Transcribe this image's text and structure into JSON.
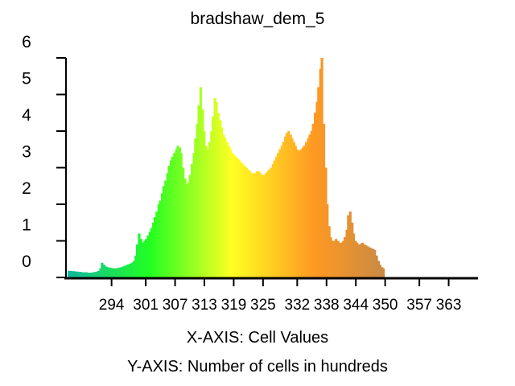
{
  "chart_data": {
    "type": "bar",
    "title": "bradshaw_dem_5",
    "xlabel": "X-AXIS: Cell Values",
    "ylabel": "Y-AXIS: Number of cells in hundreds",
    "x_range": [
      285,
      369
    ],
    "ylim": [
      0,
      6
    ],
    "xticks": [
      294,
      301,
      307,
      313,
      319,
      325,
      332,
      338,
      344,
      350,
      357,
      363
    ],
    "yticks": [
      0,
      1,
      2,
      3,
      4,
      5,
      6
    ],
    "grid": false,
    "legend": "none",
    "color_ramp": [
      "#11b7a0",
      "#22ff22",
      "#ffff22",
      "#ff9922",
      "#c0874a",
      "#c8c4bd"
    ],
    "bars": [
      [
        285.0,
        0.18
      ],
      [
        285.4,
        0.18
      ],
      [
        285.7,
        0.17
      ],
      [
        286.1,
        0.17
      ],
      [
        286.4,
        0.16
      ],
      [
        286.8,
        0.16
      ],
      [
        287.2,
        0.15
      ],
      [
        287.5,
        0.15
      ],
      [
        287.9,
        0.14
      ],
      [
        288.2,
        0.14
      ],
      [
        288.6,
        0.14
      ],
      [
        289.0,
        0.13
      ],
      [
        289.3,
        0.13
      ],
      [
        289.7,
        0.13
      ],
      [
        290.0,
        0.14
      ],
      [
        290.4,
        0.15
      ],
      [
        290.8,
        0.16
      ],
      [
        291.1,
        0.18
      ],
      [
        291.5,
        0.25
      ],
      [
        291.8,
        0.4
      ],
      [
        292.2,
        0.35
      ],
      [
        292.6,
        0.3
      ],
      [
        292.9,
        0.28
      ],
      [
        293.3,
        0.27
      ],
      [
        293.6,
        0.26
      ],
      [
        294.0,
        0.25
      ],
      [
        294.4,
        0.25
      ],
      [
        294.7,
        0.25
      ],
      [
        295.1,
        0.26
      ],
      [
        295.4,
        0.27
      ],
      [
        295.8,
        0.28
      ],
      [
        296.2,
        0.3
      ],
      [
        296.5,
        0.32
      ],
      [
        296.9,
        0.34
      ],
      [
        297.2,
        0.36
      ],
      [
        297.6,
        0.38
      ],
      [
        298.0,
        0.4
      ],
      [
        298.3,
        0.45
      ],
      [
        298.7,
        0.6
      ],
      [
        299.0,
        0.9
      ],
      [
        299.4,
        1.2
      ],
      [
        299.8,
        1.05
      ],
      [
        300.1,
        0.95
      ],
      [
        300.5,
        1.0
      ],
      [
        300.8,
        1.05
      ],
      [
        301.2,
        1.15
      ],
      [
        301.6,
        1.25
      ],
      [
        301.9,
        1.35
      ],
      [
        302.3,
        1.5
      ],
      [
        302.6,
        1.65
      ],
      [
        303.0,
        1.8
      ],
      [
        303.4,
        2.0
      ],
      [
        303.7,
        2.1
      ],
      [
        304.1,
        2.3
      ],
      [
        304.4,
        2.5
      ],
      [
        304.8,
        2.65
      ],
      [
        305.2,
        2.85
      ],
      [
        305.5,
        3.05
      ],
      [
        305.9,
        3.2
      ],
      [
        306.2,
        3.3
      ],
      [
        306.6,
        3.4
      ],
      [
        307.0,
        3.5
      ],
      [
        307.3,
        3.6
      ],
      [
        307.7,
        3.55
      ],
      [
        308.0,
        3.4
      ],
      [
        308.4,
        3.0
      ],
      [
        308.8,
        2.7
      ],
      [
        309.1,
        2.55
      ],
      [
        309.5,
        2.6
      ],
      [
        309.8,
        2.8
      ],
      [
        310.2,
        3.1
      ],
      [
        310.6,
        3.4
      ],
      [
        310.9,
        3.8
      ],
      [
        311.3,
        4.2
      ],
      [
        311.6,
        4.7
      ],
      [
        312.0,
        5.2
      ],
      [
        312.4,
        4.6
      ],
      [
        312.7,
        4.0
      ],
      [
        313.1,
        3.6
      ],
      [
        313.4,
        3.5
      ],
      [
        313.8,
        3.7
      ],
      [
        314.2,
        4.0
      ],
      [
        314.5,
        4.4
      ],
      [
        314.9,
        4.9
      ],
      [
        315.2,
        4.8
      ],
      [
        315.6,
        4.5
      ],
      [
        316.0,
        4.3
      ],
      [
        316.3,
        4.1
      ],
      [
        316.7,
        3.9
      ],
      [
        317.0,
        3.8
      ],
      [
        317.4,
        3.7
      ],
      [
        317.8,
        3.6
      ],
      [
        318.1,
        3.5
      ],
      [
        318.5,
        3.4
      ],
      [
        318.8,
        3.35
      ],
      [
        319.2,
        3.3
      ],
      [
        319.6,
        3.25
      ],
      [
        319.9,
        3.2
      ],
      [
        320.3,
        3.15
      ],
      [
        320.6,
        3.1
      ],
      [
        321.0,
        3.05
      ],
      [
        321.4,
        3.0
      ],
      [
        321.7,
        2.95
      ],
      [
        322.1,
        2.9
      ],
      [
        322.4,
        2.85
      ],
      [
        322.8,
        2.85
      ],
      [
        323.2,
        2.85
      ],
      [
        323.5,
        2.9
      ],
      [
        323.9,
        2.9
      ],
      [
        324.2,
        2.85
      ],
      [
        324.6,
        2.8
      ],
      [
        325.0,
        2.8
      ],
      [
        325.3,
        2.85
      ],
      [
        325.7,
        2.9
      ],
      [
        326.0,
        2.95
      ],
      [
        326.4,
        3.0
      ],
      [
        326.8,
        3.1
      ],
      [
        327.1,
        3.2
      ],
      [
        327.5,
        3.3
      ],
      [
        327.8,
        3.4
      ],
      [
        328.2,
        3.5
      ],
      [
        328.6,
        3.6
      ],
      [
        328.9,
        3.7
      ],
      [
        329.3,
        3.85
      ],
      [
        329.6,
        3.95
      ],
      [
        330.0,
        4.0
      ],
      [
        330.4,
        3.9
      ],
      [
        330.7,
        3.8
      ],
      [
        331.1,
        3.7
      ],
      [
        331.4,
        3.6
      ],
      [
        331.8,
        3.5
      ],
      [
        332.2,
        3.45
      ],
      [
        332.5,
        3.5
      ],
      [
        332.9,
        3.55
      ],
      [
        333.2,
        3.6
      ],
      [
        333.6,
        3.7
      ],
      [
        334.0,
        3.8
      ],
      [
        334.3,
        3.9
      ],
      [
        334.7,
        4.0
      ],
      [
        335.0,
        4.2
      ],
      [
        335.4,
        4.5
      ],
      [
        335.8,
        4.8
      ],
      [
        336.1,
        5.2
      ],
      [
        336.5,
        5.7
      ],
      [
        336.8,
        6.0
      ],
      [
        337.2,
        4.2
      ],
      [
        337.6,
        3.0
      ],
      [
        337.9,
        2.0
      ],
      [
        338.3,
        1.4
      ],
      [
        338.6,
        1.1
      ],
      [
        339.0,
        1.0
      ],
      [
        339.4,
        1.0
      ],
      [
        339.7,
        1.05
      ],
      [
        340.1,
        1.0
      ],
      [
        340.4,
        0.95
      ],
      [
        340.8,
        0.95
      ],
      [
        341.2,
        1.0
      ],
      [
        341.5,
        1.1
      ],
      [
        341.9,
        1.3
      ],
      [
        342.2,
        1.7
      ],
      [
        342.6,
        1.8
      ],
      [
        343.0,
        1.5
      ],
      [
        343.3,
        1.2
      ],
      [
        343.7,
        1.0
      ],
      [
        344.0,
        0.95
      ],
      [
        344.4,
        0.9
      ],
      [
        344.8,
        0.92
      ],
      [
        345.1,
        0.95
      ],
      [
        345.5,
        0.9
      ],
      [
        345.8,
        0.88
      ],
      [
        346.2,
        0.85
      ],
      [
        346.6,
        0.82
      ],
      [
        346.9,
        0.8
      ],
      [
        347.3,
        0.78
      ],
      [
        347.6,
        0.75
      ],
      [
        348.0,
        0.6
      ],
      [
        348.4,
        0.45
      ],
      [
        348.7,
        0.35
      ],
      [
        349.1,
        0.28
      ],
      [
        349.4,
        0.25
      ]
    ]
  }
}
